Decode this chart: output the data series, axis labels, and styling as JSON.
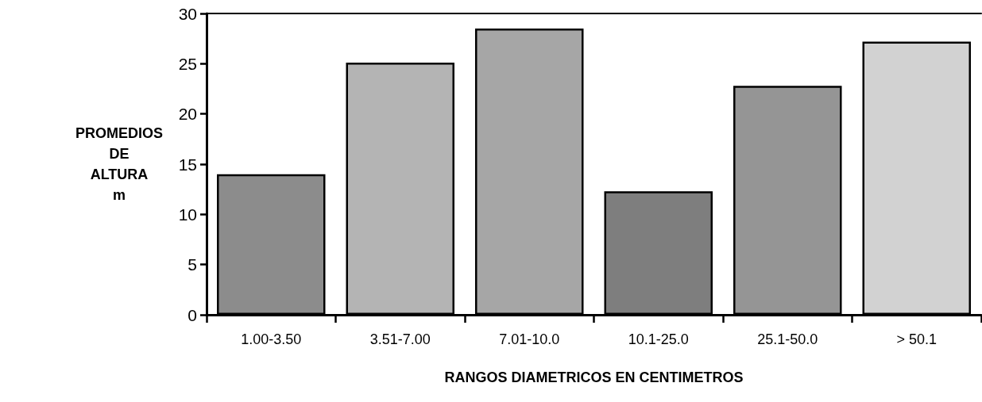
{
  "chart_data": {
    "type": "bar",
    "xlabel": "RANGOS DIAMETRICOS EN CENTIMETROS",
    "ylabel": "PROMEDIOS DE ALTURA m",
    "categories": [
      "1.00-3.50",
      "3.51-7.00",
      "7.01-10.0",
      "10.1-25.0",
      "25.1-50.0",
      "> 50.1"
    ],
    "values": [
      14.0,
      25.1,
      28.5,
      12.3,
      22.8,
      27.2
    ],
    "colors": [
      "#8c8c8c",
      "#b4b4b4",
      "#a6a6a6",
      "#7e7e7e",
      "#959595",
      "#d2d2d2"
    ],
    "ylim": [
      0,
      30
    ],
    "yticks": [
      0,
      5,
      10,
      15,
      20,
      25,
      30
    ],
    "grid": false
  }
}
